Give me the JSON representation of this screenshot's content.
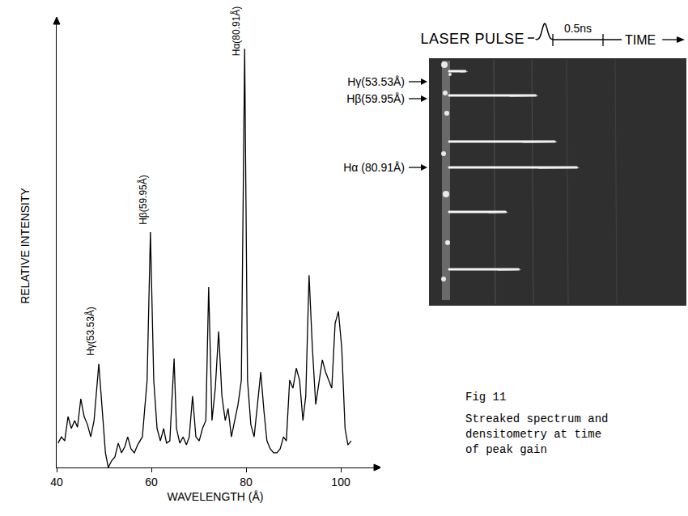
{
  "chart_data": {
    "type": "line",
    "x_label": "WAVELENGTH (Å)",
    "y_label": "RELATIVE INTENSITY",
    "x": [
      40.3,
      41.0,
      41.7,
      42.4,
      43.1,
      43.8,
      44.4,
      45.1,
      45.8,
      46.5,
      47.2,
      47.9,
      48.9,
      49.6,
      50.3,
      50.9,
      51.6,
      52.3,
      53.0,
      53.7,
      54.4,
      55.0,
      55.7,
      56.4,
      57.1,
      58.1,
      59.1,
      59.8,
      60.5,
      61.2,
      61.9,
      62.6,
      63.2,
      63.9,
      64.8,
      65.3,
      66.0,
      66.7,
      67.4,
      68.0,
      68.7,
      69.4,
      70.1,
      70.8,
      71.5,
      72.1,
      72.8,
      73.5,
      74.2,
      74.9,
      75.6,
      76.2,
      76.9,
      77.6,
      78.3,
      79.0,
      79.7,
      80.3,
      81.0,
      81.7,
      82.4,
      83.1,
      83.8,
      84.4,
      85.1,
      85.8,
      86.5,
      87.2,
      87.9,
      88.5,
      89.2,
      89.9,
      90.6,
      91.3,
      92.0,
      92.6,
      93.3,
      94.0,
      94.7,
      95.4,
      96.1,
      96.8,
      97.4,
      98.1,
      98.8,
      99.5,
      100.2,
      100.9,
      101.5,
      102.2
    ],
    "values": [
      5.5,
      6.9,
      6.0,
      11.5,
      8.8,
      10.6,
      9.1,
      15.5,
      11.5,
      9.7,
      6.9,
      10.6,
      23.4,
      12.4,
      3.3,
      0,
      1.5,
      2.4,
      5.5,
      3.3,
      4.7,
      6.9,
      4.2,
      3.3,
      5.1,
      6.9,
      19.7,
      53.1,
      19.7,
      8.8,
      6.0,
      8.8,
      5.5,
      6.0,
      24.6,
      8.8,
      5.5,
      6.9,
      5.1,
      6.9,
      16.1,
      6.9,
      6.0,
      8.8,
      10.6,
      40.7,
      10.6,
      17.9,
      30.7,
      16.1,
      10.6,
      13.3,
      6.9,
      10.6,
      14.2,
      19.7,
      94.5,
      19.7,
      9.7,
      6.9,
      14.2,
      21.5,
      12.4,
      6.0,
      4.2,
      3.3,
      3.3,
      4.2,
      6.9,
      6.0,
      19.7,
      17.9,
      22.4,
      19.7,
      10.6,
      16.1,
      43.4,
      27.0,
      14.2,
      19.7,
      24.3,
      21.5,
      19.7,
      17.9,
      32.5,
      35.2,
      27.0,
      8.8,
      5.1,
      6.0
    ],
    "color": "#000000",
    "xlim": [
      40,
      107
    ],
    "xticks": [
      40,
      60,
      80,
      100
    ],
    "ylim": [
      0,
      100
    ],
    "yticks": [],
    "tick_labels": "x",
    "grid": false,
    "annotations": [
      {
        "text": "Hγ(53.53Å)",
        "x": 48.9
      },
      {
        "text": "Hβ(59.95Å)",
        "x": 59.8
      },
      {
        "text": "Hα(80.91Å)",
        "x": 79.7
      }
    ]
  },
  "streak_panel": {
    "pulse_label": "LASER PULSE",
    "scale_bar": {
      "label": "0.5ns",
      "value": 0.5
    },
    "time_label": "TIME",
    "line_labels": [
      "Hγ(53.53Å)",
      "Hβ(59.95Å)",
      "Hα (80.91Å)"
    ],
    "streak_durations_ns": [
      0.16,
      0.86,
      1.05,
      1.27,
      0.56,
      0.69
    ]
  },
  "caption": {
    "title": "Fig 11",
    "lines": [
      "Streaked spectrum and",
      "densitometry at time",
      "of peak gain"
    ]
  }
}
